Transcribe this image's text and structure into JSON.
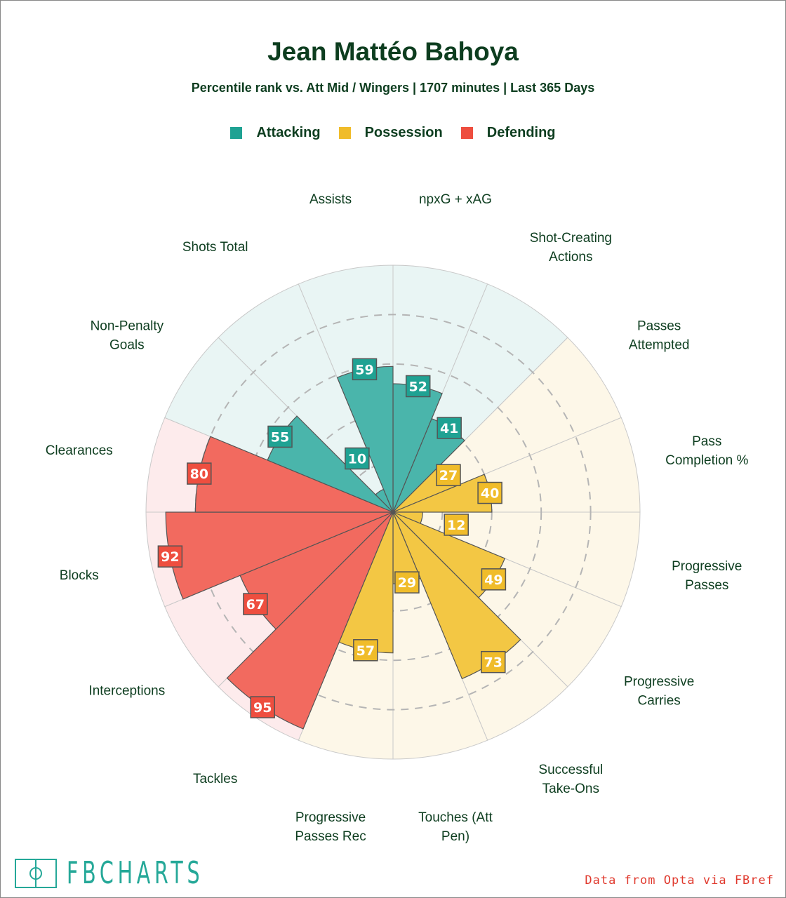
{
  "header": {
    "title": "Jean Mattéo Bahoya",
    "subtitle": "Percentile rank vs. Att Mid / Wingers | 1707 minutes | Last 365 Days"
  },
  "legend": [
    {
      "label": "Attacking",
      "color": "#1fa293"
    },
    {
      "label": "Possession",
      "color": "#f0bc2a"
    },
    {
      "label": "Defending",
      "color": "#ee4e3f"
    }
  ],
  "chart_data": {
    "type": "pizza",
    "title": "Jean Mattéo Bahoya",
    "range": [
      0,
      100
    ],
    "gridlines": [
      20,
      40,
      60,
      80
    ],
    "categories": [
      {
        "lines": [
          "npxG + xAG"
        ],
        "value": 52,
        "group": "Attacking"
      },
      {
        "lines": [
          "Shot-Creating",
          "Actions"
        ],
        "value": 41,
        "group": "Attacking"
      },
      {
        "lines": [
          "Passes",
          "Attempted"
        ],
        "value": 27,
        "group": "Possession"
      },
      {
        "lines": [
          "Pass",
          "Completion %"
        ],
        "value": 40,
        "group": "Possession"
      },
      {
        "lines": [
          "Progressive",
          "Passes"
        ],
        "value": 12,
        "group": "Possession"
      },
      {
        "lines": [
          "Progressive",
          "Carries"
        ],
        "value": 49,
        "group": "Possession"
      },
      {
        "lines": [
          "Successful",
          "Take-Ons"
        ],
        "value": 73,
        "group": "Possession"
      },
      {
        "lines": [
          "Touches (Att",
          "Pen)"
        ],
        "value": 29,
        "group": "Possession"
      },
      {
        "lines": [
          "Progressive",
          "Passes Rec"
        ],
        "value": 57,
        "group": "Possession"
      },
      {
        "lines": [
          "Tackles"
        ],
        "value": 95,
        "group": "Defending"
      },
      {
        "lines": [
          "Interceptions"
        ],
        "value": 67,
        "group": "Defending"
      },
      {
        "lines": [
          "Blocks"
        ],
        "value": 92,
        "group": "Defending"
      },
      {
        "lines": [
          "Clearances"
        ],
        "value": 80,
        "group": "Defending"
      },
      {
        "lines": [
          "Non-Penalty",
          "Goals"
        ],
        "value": 55,
        "group": "Attacking"
      },
      {
        "lines": [
          "Shots Total"
        ],
        "value": 10,
        "group": "Attacking"
      },
      {
        "lines": [
          "Assists"
        ],
        "value": 59,
        "group": "Attacking"
      }
    ],
    "group_colors": {
      "Attacking": {
        "fill": "#4ab5ab",
        "box": "#1fa293",
        "bg": "#e9f5f4"
      },
      "Possession": {
        "fill": "#f3c744",
        "box": "#f0bc2a",
        "bg": "#fdf7e8"
      },
      "Defending": {
        "fill": "#f26a5f",
        "box": "#ee4e3f",
        "bg": "#fdebec"
      }
    }
  },
  "footer": {
    "logo": "FBCHARTS",
    "credit": "Data from Opta via FBref"
  }
}
